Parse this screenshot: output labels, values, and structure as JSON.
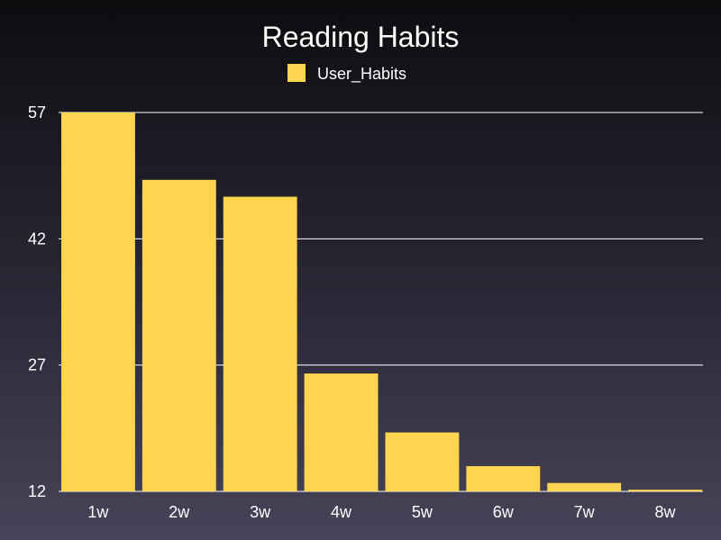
{
  "chart_data": {
    "type": "bar",
    "title": "Reading Habits",
    "xlabel": "",
    "ylabel": "",
    "categories": [
      "1w",
      "2w",
      "3w",
      "4w",
      "5w",
      "6w",
      "7w",
      "8w"
    ],
    "series": [
      {
        "name": "User_Habits",
        "values": [
          57,
          49,
          47,
          26,
          19,
          15,
          13,
          12.2
        ]
      }
    ],
    "ylim": [
      12,
      57
    ],
    "yticks": [
      12,
      27,
      42,
      57
    ],
    "grid": true,
    "legend": "top-center",
    "colors": {
      "bar": "#ffd54f",
      "text": "#ffffff",
      "grid": "#ffffff"
    }
  }
}
